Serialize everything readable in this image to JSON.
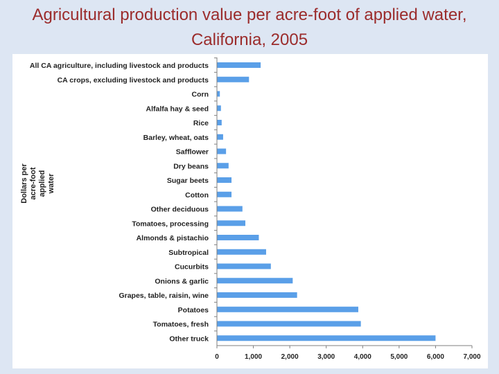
{
  "slide": {
    "title": "Agricultural production value per acre-foot of applied water, California, 2005"
  },
  "chart_data": {
    "type": "bar",
    "orientation": "horizontal",
    "title": "",
    "xlabel": "",
    "ylabel": "Dollars per acre-foot applied water",
    "categories": [
      "All CA agriculture, including livestock and products",
      "CA crops, excluding livestock and products",
      "Corn",
      "Alfalfa hay & seed",
      "Rice",
      "Barley, wheat, oats",
      "Safflower",
      "Dry beans",
      "Sugar beets",
      "Cotton",
      "Other deciduous",
      "Tomatoes, processing",
      "Almonds & pistachio",
      "Subtropical",
      "Cucurbits",
      "Onions & garlic",
      "Grapes, table, raisin, wine",
      "Potatoes",
      "Tomatoes, fresh",
      "Other truck"
    ],
    "values": [
      1200,
      880,
      80,
      110,
      130,
      170,
      250,
      320,
      400,
      400,
      700,
      780,
      1150,
      1350,
      1480,
      2080,
      2200,
      3880,
      3950,
      6000
    ],
    "xlim": [
      0,
      7000
    ],
    "xticks": [
      0,
      1000,
      2000,
      3000,
      4000,
      5000,
      6000,
      7000
    ],
    "xtick_labels": [
      "0",
      "1,000",
      "2,000",
      "3,000",
      "4,000",
      "5,000",
      "6,000",
      "7,000"
    ],
    "grid": false,
    "bar_color": "#5a9fe8"
  }
}
